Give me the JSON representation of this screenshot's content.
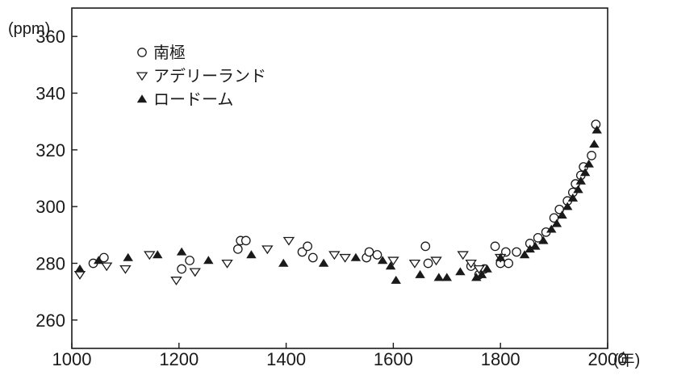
{
  "chart_data": {
    "type": "scatter",
    "title": "",
    "xlabel": "(年)",
    "ylabel": "(ppm)",
    "xlim": [
      1000,
      2000
    ],
    "ylim": [
      250,
      370
    ],
    "x_ticks": [
      1000,
      1200,
      1400,
      1600,
      1800,
      2000
    ],
    "x_tick_labels": [
      "1000",
      "1200",
      "1400",
      "1600",
      "1800",
      "2000"
    ],
    "y_ticks": [
      260,
      280,
      300,
      320,
      340,
      360
    ],
    "y_tick_labels": [
      "260",
      "280",
      "300",
      "320",
      "340",
      "360"
    ],
    "grid": false,
    "legend_position": "top-left",
    "series": [
      {
        "name": "南極",
        "marker": "circle-open",
        "points": [
          [
            1040,
            280
          ],
          [
            1060,
            282
          ],
          [
            1205,
            278
          ],
          [
            1220,
            281
          ],
          [
            1310,
            285
          ],
          [
            1315,
            288
          ],
          [
            1325,
            288
          ],
          [
            1430,
            284
          ],
          [
            1440,
            286
          ],
          [
            1450,
            282
          ],
          [
            1550,
            282
          ],
          [
            1555,
            284
          ],
          [
            1570,
            283
          ],
          [
            1660,
            286
          ],
          [
            1665,
            280
          ],
          [
            1745,
            279
          ],
          [
            1760,
            276
          ],
          [
            1770,
            278
          ],
          [
            1790,
            286
          ],
          [
            1800,
            280
          ],
          [
            1810,
            284
          ],
          [
            1815,
            280
          ],
          [
            1830,
            284
          ],
          [
            1855,
            287
          ],
          [
            1870,
            289
          ],
          [
            1885,
            291
          ],
          [
            1900,
            296
          ],
          [
            1910,
            299
          ],
          [
            1925,
            302
          ],
          [
            1935,
            305
          ],
          [
            1940,
            308
          ],
          [
            1950,
            311
          ],
          [
            1955,
            314
          ],
          [
            1970,
            318
          ],
          [
            1978,
            329
          ]
        ]
      },
      {
        "name": "アデリーランド",
        "marker": "triangle-down-open",
        "points": [
          [
            1015,
            276
          ],
          [
            1065,
            279
          ],
          [
            1100,
            278
          ],
          [
            1145,
            283
          ],
          [
            1195,
            274
          ],
          [
            1230,
            277
          ],
          [
            1290,
            280
          ],
          [
            1365,
            285
          ],
          [
            1405,
            288
          ],
          [
            1490,
            283
          ],
          [
            1510,
            282
          ],
          [
            1600,
            281
          ],
          [
            1640,
            280
          ],
          [
            1680,
            281
          ],
          [
            1730,
            283
          ],
          [
            1745,
            280
          ],
          [
            1760,
            278
          ],
          [
            1800,
            282
          ]
        ]
      },
      {
        "name": "ロードーム",
        "marker": "triangle-up-filled",
        "points": [
          [
            1015,
            278
          ],
          [
            1050,
            281
          ],
          [
            1105,
            282
          ],
          [
            1160,
            283
          ],
          [
            1205,
            284
          ],
          [
            1255,
            281
          ],
          [
            1335,
            283
          ],
          [
            1395,
            280
          ],
          [
            1470,
            280
          ],
          [
            1530,
            282
          ],
          [
            1580,
            281
          ],
          [
            1595,
            279
          ],
          [
            1605,
            274
          ],
          [
            1650,
            276
          ],
          [
            1685,
            275
          ],
          [
            1700,
            275
          ],
          [
            1725,
            277
          ],
          [
            1755,
            275
          ],
          [
            1765,
            276
          ],
          [
            1775,
            278
          ],
          [
            1800,
            282
          ],
          [
            1845,
            283
          ],
          [
            1855,
            285
          ],
          [
            1865,
            286
          ],
          [
            1880,
            288
          ],
          [
            1895,
            292
          ],
          [
            1905,
            294
          ],
          [
            1915,
            297
          ],
          [
            1925,
            300
          ],
          [
            1935,
            303
          ],
          [
            1945,
            306
          ],
          [
            1950,
            309
          ],
          [
            1958,
            312
          ],
          [
            1965,
            315
          ],
          [
            1975,
            322
          ],
          [
            1980,
            327
          ]
        ]
      }
    ]
  }
}
